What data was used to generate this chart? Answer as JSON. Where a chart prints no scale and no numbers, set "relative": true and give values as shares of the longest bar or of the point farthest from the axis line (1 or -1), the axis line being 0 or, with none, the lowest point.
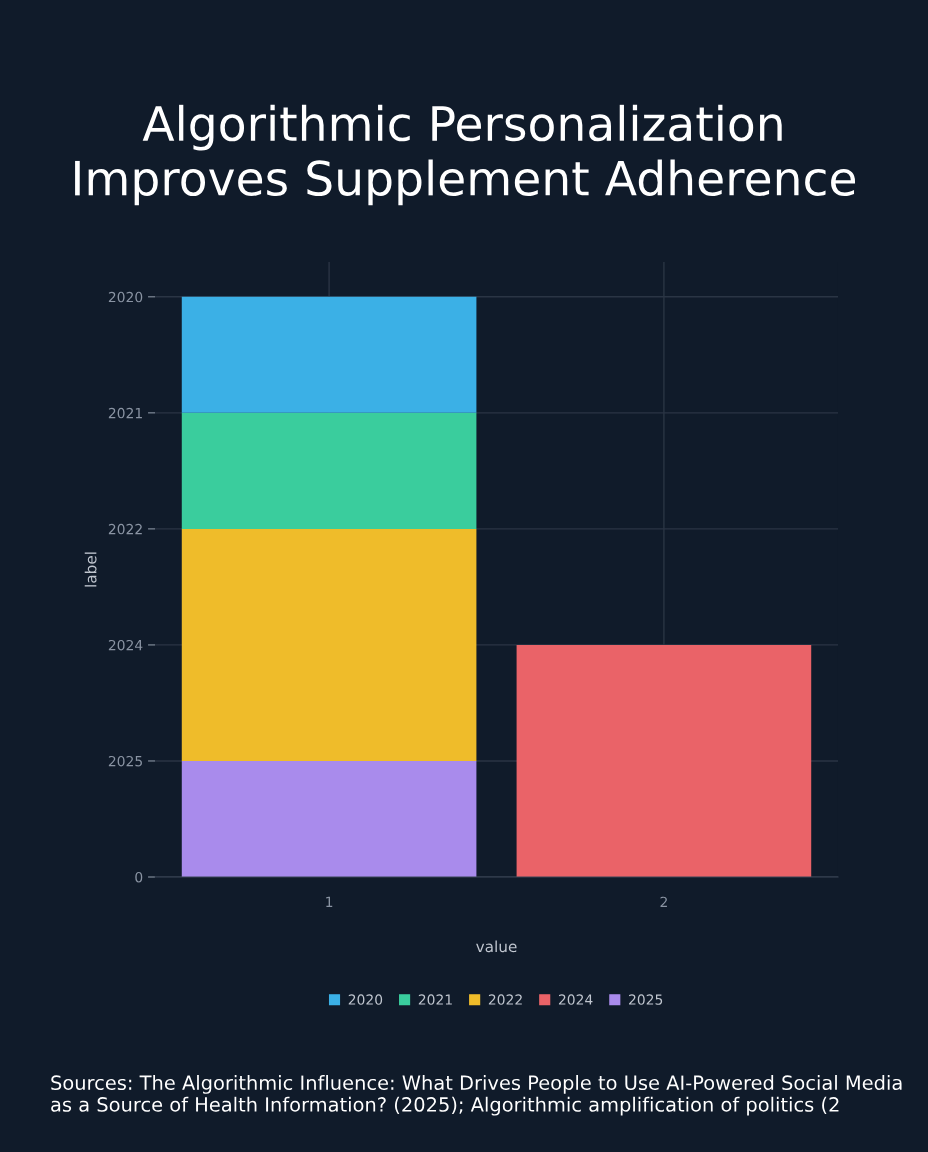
{
  "chart_data": {
    "type": "bar",
    "stacked": true,
    "relative": true,
    "title": "Algorithmic Personalization\nImproves Supplement Adherence",
    "xlabel": "value",
    "ylabel": "label",
    "categories": [
      "1",
      "2"
    ],
    "series": [
      {
        "name": "2025",
        "color": "#a98bec",
        "values": [
          0.2,
          0
        ]
      },
      {
        "name": "2024",
        "color": "#ea6368",
        "values": [
          0,
          0.4
        ]
      },
      {
        "name": "2022",
        "color": "#efbc2a",
        "values": [
          0.4,
          0
        ]
      },
      {
        "name": "2021",
        "color": "#3acd9d",
        "values": [
          0.2,
          0
        ]
      },
      {
        "name": "2020",
        "color": "#3bb0e6",
        "values": [
          0.2,
          0
        ]
      }
    ],
    "grid": true,
    "legend": "bottom",
    "annotations": [
      "0",
      "Sources: The Algorithmic Influence: What Drives People to Use AI-Powered Social Media as a Source of Health Information? (2025); Algorithmic amplification of politics (2"
    ]
  }
}
